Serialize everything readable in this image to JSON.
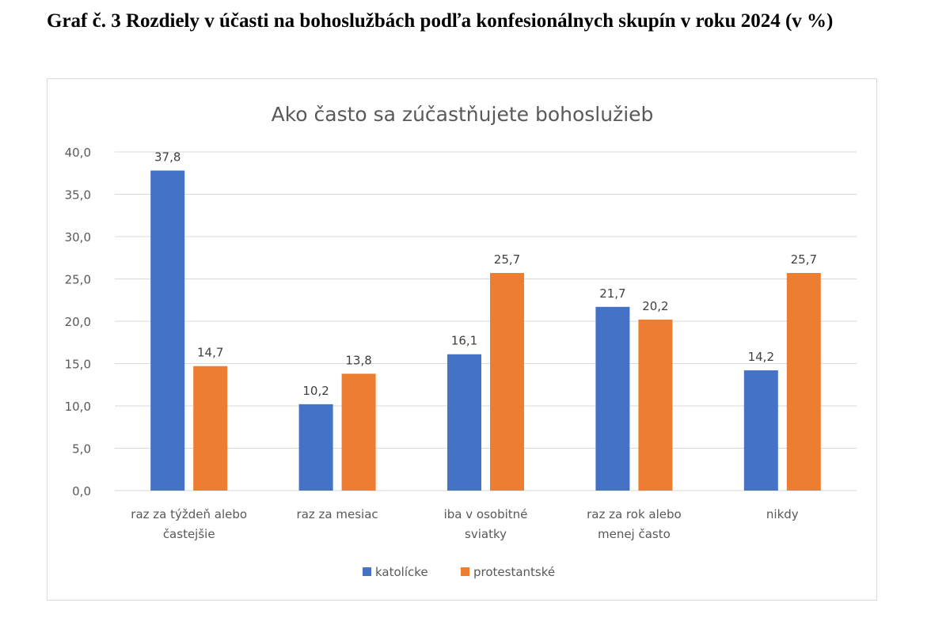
{
  "document": {
    "heading": "Graf č. 3 Rozdiely v účasti na bohoslužbách podľa konfesionálnych skupín v roku 2024 (v %)"
  },
  "chart_data": {
    "type": "bar",
    "title": "Ako často sa zúčastňujete bohoslužieb",
    "xlabel": "",
    "ylabel": "",
    "ylim": [
      0,
      40
    ],
    "ytick_step": 5,
    "yticks": [
      "0,0",
      "5,0",
      "10,0",
      "15,0",
      "20,0",
      "25,0",
      "30,0",
      "35,0",
      "40,0"
    ],
    "grid": true,
    "legend_position": "bottom",
    "categories": [
      [
        "raz za týždeň alebo",
        "častejšie"
      ],
      [
        "raz za mesiac"
      ],
      [
        "iba v osobitné",
        "sviatky"
      ],
      [
        "raz za rok alebo",
        "menej často"
      ],
      [
        "nikdy"
      ]
    ],
    "series": [
      {
        "name": "katolícke",
        "color": "#4472c4",
        "values": [
          37.8,
          10.2,
          16.1,
          21.7,
          14.2
        ],
        "labels": [
          "37,8",
          "10,2",
          "16,1",
          "21,7",
          "14,2"
        ]
      },
      {
        "name": "protestantské",
        "color": "#ed7d31",
        "values": [
          14.7,
          13.8,
          25.7,
          20.2,
          25.7
        ],
        "labels": [
          "14,7",
          "13,8",
          "25,7",
          "20,2",
          "25,7"
        ]
      }
    ]
  }
}
